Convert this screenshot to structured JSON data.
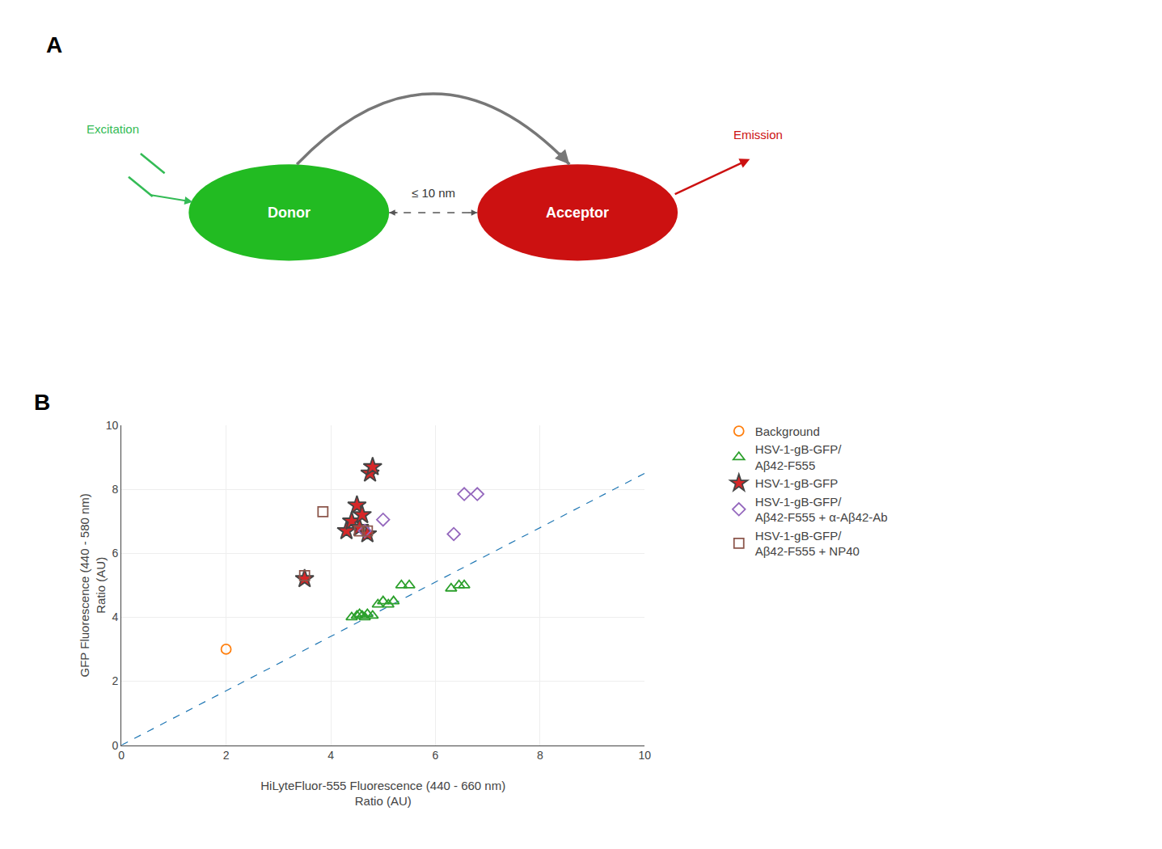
{
  "chart_data": [
    {
      "type": "diagram",
      "title": "A",
      "nodes": [
        {
          "name": "Donor",
          "color": "#22bb22"
        },
        {
          "name": "Acceptor",
          "color": "#cc1111"
        }
      ],
      "links": [
        {
          "source": "Donor",
          "target": "Acceptor",
          "color": "#777777"
        }
      ],
      "annotations": [
        {
          "text": "≤ 10 nm"
        },
        {
          "text": "Excitation",
          "color": "#33bb55"
        },
        {
          "text": "Emission",
          "color": "#cc1111"
        }
      ]
    },
    {
      "type": "scatter",
      "title": "B",
      "x_label": "HiLyteFluor-555 Fluorescence (440 - 660 nm)\nRatio (AU)",
      "y_label": "GFP Fluorescence (440 - 580 nm)\nRatio (AU)",
      "xlim": [
        0,
        10
      ],
      "ylim": [
        0,
        10
      ],
      "xticks": [
        0,
        2,
        4,
        6,
        8,
        10
      ],
      "yticks": [
        0,
        2,
        4,
        6,
        8,
        10
      ],
      "series": [
        {
          "type": "line",
          "line_style": "dash",
          "x": [
            0,
            10
          ],
          "y": [
            0,
            8.5
          ]
        },
        {
          "name": "Background",
          "marker": "circle-open",
          "x": [
            2.0
          ],
          "y": [
            3.0
          ]
        },
        {
          "name": "HSV-1-gB-GFP/\nAβ42-F555",
          "marker": "triangle-up-open",
          "x": [
            4.4,
            4.5,
            4.55,
            4.6,
            4.65,
            4.7,
            4.8,
            4.9,
            5.0,
            5.1,
            5.2,
            5.35,
            5.5,
            6.3,
            6.45,
            6.55
          ],
          "y": [
            4.0,
            4.05,
            4.1,
            4.05,
            4.0,
            4.1,
            4.05,
            4.4,
            4.5,
            4.4,
            4.5,
            5.0,
            5.0,
            4.9,
            5.0,
            5.0
          ]
        },
        {
          "name": "HSV-1-gB-GFP",
          "marker": "star",
          "x": [
            3.5,
            4.3,
            4.4,
            4.5,
            4.55,
            4.6,
            4.7,
            4.75,
            4.8
          ],
          "y": [
            5.2,
            6.7,
            7.0,
            7.5,
            6.8,
            7.2,
            6.6,
            8.5,
            8.7
          ]
        },
        {
          "name": "HSV-1-gB-GFP/\nAβ42-F555 + α-Aβ42-Ab",
          "marker": "diamond-open",
          "x": [
            4.65,
            5.0,
            6.35,
            6.55,
            6.8
          ],
          "y": [
            6.7,
            7.05,
            6.6,
            7.85,
            7.85
          ]
        },
        {
          "name": "HSV-1-gB-GFP/\nAβ42-F555 + NP40",
          "marker": "square-open",
          "x": [
            3.5,
            3.85,
            4.55,
            4.7
          ],
          "y": [
            5.3,
            7.3,
            6.7,
            6.7
          ]
        }
      ]
    }
  ]
}
